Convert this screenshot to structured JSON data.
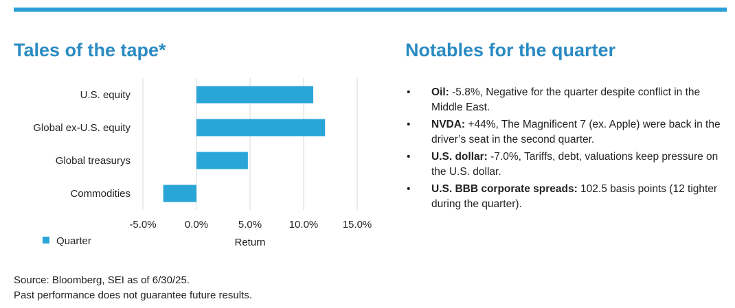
{
  "left_title": "Tales of the tape*",
  "right_title": "Notables for the quarter",
  "colors": {
    "accent": "#2a9fd8",
    "title": "#2a8bc3",
    "bar": "#2aa5d8",
    "grid": "#d9d9d9"
  },
  "chart_data": {
    "type": "bar",
    "orientation": "horizontal",
    "categories": [
      "U.S. equity",
      "Global ex-U.S. equity",
      "Global treasurys",
      "Commodities"
    ],
    "series": [
      {
        "name": "Quarter",
        "values": [
          10.9,
          12.0,
          4.8,
          -3.1
        ]
      }
    ],
    "xlabel": "Return",
    "xlim": [
      -5,
      15
    ],
    "x_ticks": [
      "-5.0%",
      "0.0%",
      "5.0%",
      "10.0%",
      "15.0%"
    ],
    "grid": true,
    "legend": "bottom-left"
  },
  "notables": [
    {
      "bold": "Oil:",
      "text": " -5.8%, Negative for the quarter despite conflict in the Middle East."
    },
    {
      "bold": "NVDA:",
      "text": " +44%, The Magnificent 7 (ex. Apple) were back in the driver’s seat in the second quarter."
    },
    {
      "bold": "U.S. dollar:",
      "text": " -7.0%, Tariffs, debt, valuations keep pressure on the U.S. dollar."
    },
    {
      "bold": "U.S. BBB corporate spreads:",
      "text": " 102.5 basis points (12 tighter during the quarter)."
    }
  ],
  "bullet_char": "•",
  "source_line1": "Source: Bloomberg, SEI as of 6/30/25.",
  "source_line2": "Past performance does not guarantee future results."
}
